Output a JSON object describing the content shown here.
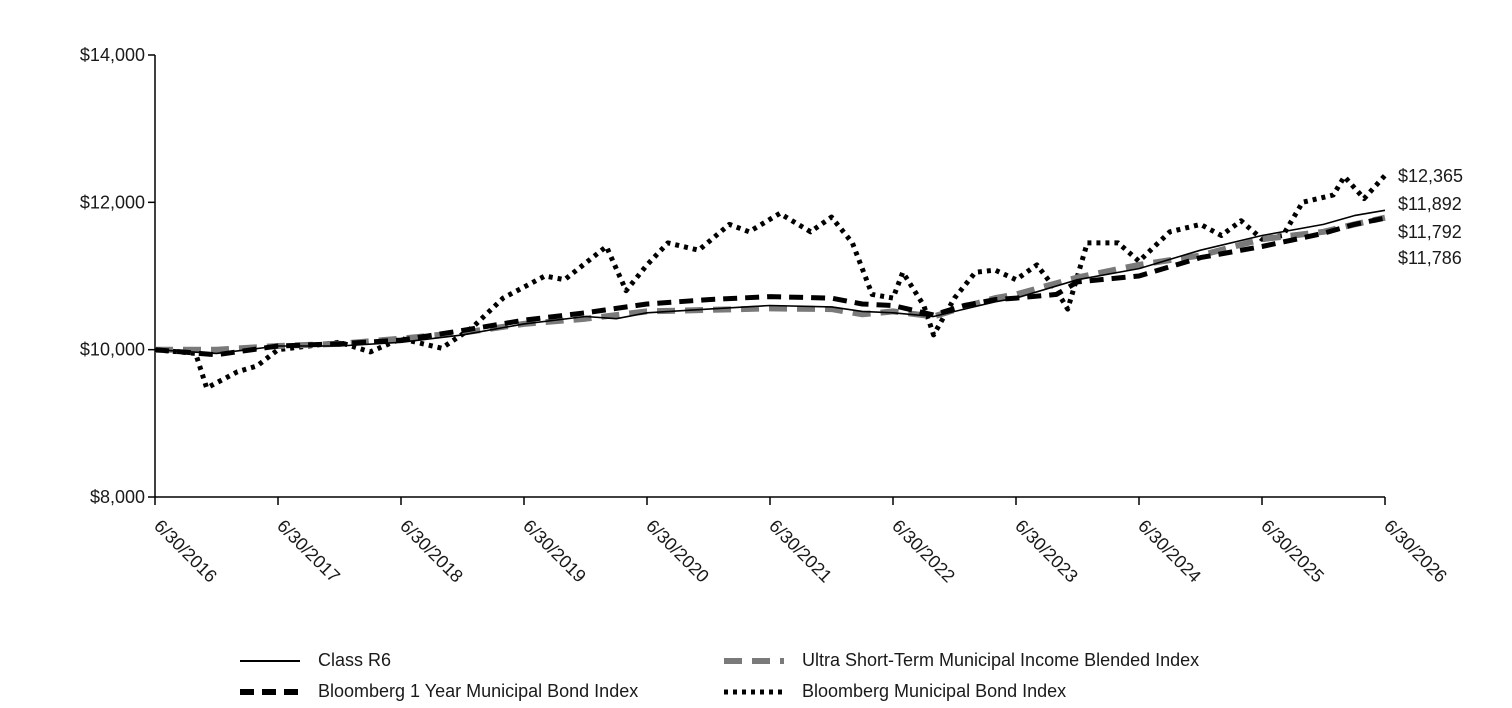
{
  "chart_data": {
    "type": "line",
    "title": "",
    "xlabel": "",
    "ylabel": "",
    "ylim": [
      8000,
      14000
    ],
    "y_ticks": [
      "$8,000",
      "$10,000",
      "$12,000",
      "$14,000"
    ],
    "y_tick_values": [
      8000,
      10000,
      12000,
      14000
    ],
    "x_ticks": [
      "6/30/2016",
      "6/30/2017",
      "6/30/2018",
      "6/30/2019",
      "6/30/2020",
      "6/30/2021",
      "6/30/2022",
      "6/30/2023",
      "6/30/2024",
      "6/30/2025",
      "6/30/2026"
    ],
    "x_tick_years": [
      2016,
      2017,
      2018,
      2019,
      2020,
      2021,
      2022,
      2023,
      2024,
      2025,
      2026
    ],
    "x_range": [
      2016,
      2026
    ],
    "grid": false,
    "legend_position": "bottom",
    "end_labels": [
      "$12,365",
      "$11,892",
      "$11,792",
      "$11,786"
    ],
    "series": [
      {
        "name": "Class R6",
        "color": "#000000",
        "style": "solid",
        "points": [
          [
            2016.0,
            10000
          ],
          [
            2016.5,
            9950
          ],
          [
            2017.0,
            10050
          ],
          [
            2017.5,
            10050
          ],
          [
            2018.0,
            10100
          ],
          [
            2018.5,
            10200
          ],
          [
            2019.0,
            10350
          ],
          [
            2019.5,
            10450
          ],
          [
            2019.75,
            10420
          ],
          [
            2020.0,
            10500
          ],
          [
            2020.5,
            10550
          ],
          [
            2021.0,
            10600
          ],
          [
            2021.5,
            10580
          ],
          [
            2021.75,
            10520
          ],
          [
            2022.0,
            10500
          ],
          [
            2022.33,
            10450
          ],
          [
            2022.58,
            10550
          ],
          [
            2022.83,
            10650
          ],
          [
            2023.0,
            10700
          ],
          [
            2023.5,
            10950
          ],
          [
            2024.0,
            11100
          ],
          [
            2024.5,
            11350
          ],
          [
            2025.0,
            11550
          ],
          [
            2025.5,
            11700
          ],
          [
            2025.75,
            11820
          ],
          [
            2026.0,
            11892
          ]
        ]
      },
      {
        "name": "Ultra Short-Term Municipal Income Blended Index",
        "color": "#7a7a7a",
        "style": "dashed",
        "points": [
          [
            2016.0,
            10000
          ],
          [
            2016.5,
            10000
          ],
          [
            2017.0,
            10050
          ],
          [
            2017.5,
            10080
          ],
          [
            2018.0,
            10150
          ],
          [
            2018.5,
            10230
          ],
          [
            2019.0,
            10350
          ],
          [
            2019.5,
            10420
          ],
          [
            2020.0,
            10520
          ],
          [
            2020.5,
            10540
          ],
          [
            2021.0,
            10560
          ],
          [
            2021.5,
            10550
          ],
          [
            2021.75,
            10480
          ],
          [
            2022.0,
            10520
          ],
          [
            2022.33,
            10450
          ],
          [
            2022.58,
            10580
          ],
          [
            2022.83,
            10700
          ],
          [
            2023.0,
            10750
          ],
          [
            2023.5,
            10980
          ],
          [
            2024.0,
            11150
          ],
          [
            2024.5,
            11280
          ],
          [
            2025.0,
            11500
          ],
          [
            2025.5,
            11600
          ],
          [
            2025.75,
            11700
          ],
          [
            2026.0,
            11792
          ]
        ]
      },
      {
        "name": "Bloomberg 1 Year Municipal Bond Index",
        "color": "#000000",
        "style": "bold-dashed",
        "points": [
          [
            2016.0,
            10000
          ],
          [
            2016.5,
            9930
          ],
          [
            2017.0,
            10050
          ],
          [
            2017.5,
            10080
          ],
          [
            2018.0,
            10130
          ],
          [
            2018.5,
            10260
          ],
          [
            2019.0,
            10400
          ],
          [
            2019.5,
            10500
          ],
          [
            2020.0,
            10620
          ],
          [
            2020.5,
            10680
          ],
          [
            2021.0,
            10720
          ],
          [
            2021.5,
            10700
          ],
          [
            2021.75,
            10620
          ],
          [
            2022.0,
            10600
          ],
          [
            2022.33,
            10470
          ],
          [
            2022.58,
            10600
          ],
          [
            2022.83,
            10680
          ],
          [
            2023.0,
            10700
          ],
          [
            2023.33,
            10750
          ],
          [
            2023.5,
            10920
          ],
          [
            2024.0,
            11000
          ],
          [
            2024.5,
            11250
          ],
          [
            2025.0,
            11400
          ],
          [
            2025.5,
            11580
          ],
          [
            2025.75,
            11700
          ],
          [
            2026.0,
            11786
          ]
        ]
      },
      {
        "name": "Bloomberg Municipal Bond Index",
        "color": "#000000",
        "style": "dotted",
        "points": [
          [
            2016.0,
            10000
          ],
          [
            2016.33,
            9950
          ],
          [
            2016.42,
            9480
          ],
          [
            2016.67,
            9700
          ],
          [
            2016.83,
            9780
          ],
          [
            2017.0,
            10000
          ],
          [
            2017.5,
            10100
          ],
          [
            2017.75,
            9970
          ],
          [
            2018.0,
            10150
          ],
          [
            2018.33,
            10020
          ],
          [
            2018.58,
            10300
          ],
          [
            2018.83,
            10700
          ],
          [
            2019.17,
            11000
          ],
          [
            2019.33,
            10950
          ],
          [
            2019.67,
            11400
          ],
          [
            2019.83,
            10800
          ],
          [
            2020.0,
            11150
          ],
          [
            2020.17,
            11450
          ],
          [
            2020.42,
            11350
          ],
          [
            2020.67,
            11700
          ],
          [
            2020.83,
            11600
          ],
          [
            2021.08,
            11850
          ],
          [
            2021.33,
            11600
          ],
          [
            2021.5,
            11800
          ],
          [
            2021.67,
            11450
          ],
          [
            2021.83,
            10750
          ],
          [
            2022.0,
            10700
          ],
          [
            2022.08,
            11050
          ],
          [
            2022.25,
            10600
          ],
          [
            2022.33,
            10200
          ],
          [
            2022.5,
            10700
          ],
          [
            2022.67,
            11050
          ],
          [
            2022.83,
            11080
          ],
          [
            2023.0,
            10950
          ],
          [
            2023.17,
            11150
          ],
          [
            2023.33,
            10800
          ],
          [
            2023.42,
            10550
          ],
          [
            2023.58,
            11450
          ],
          [
            2023.83,
            11450
          ],
          [
            2024.0,
            11200
          ],
          [
            2024.25,
            11600
          ],
          [
            2024.5,
            11700
          ],
          [
            2024.67,
            11550
          ],
          [
            2024.83,
            11750
          ],
          [
            2025.0,
            11500
          ],
          [
            2025.17,
            11550
          ],
          [
            2025.33,
            12000
          ],
          [
            2025.58,
            12100
          ],
          [
            2025.67,
            12350
          ],
          [
            2025.83,
            12050
          ],
          [
            2026.0,
            12365
          ]
        ]
      }
    ]
  }
}
